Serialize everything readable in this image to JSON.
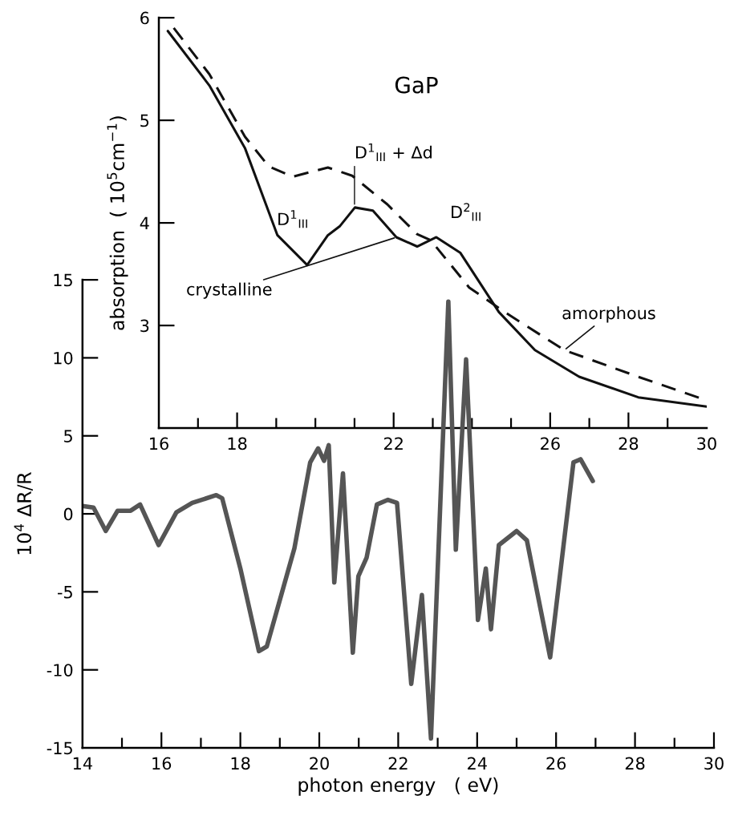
{
  "chart_data": [
    {
      "type": "line",
      "title": "GaP",
      "ylabel": "absorption  ( 10$^{5}$cm$^{−1}$)",
      "xlim": [
        16,
        30
      ],
      "ylim": [
        2,
        6
      ],
      "xticks": [
        16,
        {
          "value": 17,
          "label": null
        },
        18,
        {
          "value": 19,
          "label": null
        },
        {
          "value": 20,
          "label": null
        },
        {
          "value": 21,
          "label": null
        },
        22,
        {
          "value": 23,
          "label": null
        },
        {
          "value": 24,
          "label": null
        },
        {
          "value": 25,
          "label": null
        },
        26,
        {
          "value": 27,
          "label": null
        },
        28,
        {
          "value": 29,
          "label": null
        },
        30
      ],
      "yticks": [
        3,
        4,
        5,
        6
      ],
      "grid": false,
      "legend": false,
      "marker": "none",
      "series": [
        {
          "name": "crystalline",
          "color": "#111111",
          "line_style": "solid",
          "x": [
            16.23,
            17.29,
            18.2,
            19.03,
            19.79,
            20.32,
            20.63,
            21.01,
            21.47,
            22.07,
            22.6,
            23.09,
            23.7,
            24.69,
            25.61,
            26.74,
            28.25,
            30.0
          ],
          "values": [
            5.87,
            5.34,
            4.73,
            3.88,
            3.59,
            3.88,
            3.97,
            4.15,
            4.12,
            3.86,
            3.77,
            3.86,
            3.71,
            3.13,
            2.76,
            2.5,
            2.3,
            2.21
          ]
        },
        {
          "name": "amorphous",
          "color": "#111111",
          "line_style": "dashed",
          "x": [
            16.38,
            17.29,
            18.2,
            18.81,
            19.42,
            20.32,
            20.94,
            21.84,
            22.6,
            22.95,
            23.93,
            24.84,
            26.36,
            28.25,
            30.0
          ],
          "values": [
            5.9,
            5.45,
            4.84,
            4.55,
            4.45,
            4.54,
            4.46,
            4.18,
            3.89,
            3.83,
            3.37,
            3.13,
            2.76,
            2.5,
            2.27
          ]
        }
      ],
      "annotations": [
        {
          "text": "D$^{1}$$_{III}$",
          "x": 20.4,
          "y": 3.9
        },
        {
          "text": "D$^{1}$$_{III}$ + Δd",
          "x": 21.0,
          "y": 4.16
        },
        {
          "text": "D$^{2}$$_{III}$",
          "x": 23.1,
          "y": 3.86
        }
      ]
    },
    {
      "type": "line",
      "xlabel": "photon energy   ( eV)",
      "ylabel": "10$^{4}$ ΔR/R",
      "xlim": [
        14,
        30
      ],
      "ylim": [
        -15,
        15
      ],
      "xticks": [
        14,
        {
          "value": 15,
          "label": null
        },
        16,
        {
          "value": 17,
          "label": null
        },
        18,
        {
          "value": 19,
          "label": null
        },
        20,
        {
          "value": 21,
          "label": null
        },
        22,
        {
          "value": 23,
          "label": null
        },
        24,
        {
          "value": 25,
          "label": null
        },
        26,
        {
          "value": 27,
          "label": null
        },
        28,
        {
          "value": 29,
          "label": null
        },
        30
      ],
      "yticks": [
        -15,
        -10,
        -5,
        0,
        5,
        10,
        15
      ],
      "grid": false,
      "legend": false,
      "marker": "none",
      "series": [
        {
          "color": "#555555",
          "line_style": "solid",
          "x": [
            14.0,
            14.28,
            14.59,
            14.89,
            15.22,
            15.46,
            15.93,
            16.38,
            16.78,
            17.39,
            17.54,
            18.0,
            18.47,
            18.67,
            19.37,
            19.77,
            19.97,
            20.12,
            20.24,
            20.38,
            20.6,
            20.85,
            20.99,
            21.2,
            21.46,
            21.74,
            21.97,
            22.33,
            22.6,
            22.83,
            23.27,
            23.46,
            23.72,
            24.02,
            24.22,
            24.35,
            24.55,
            25.0,
            25.26,
            25.85,
            26.44,
            26.62,
            26.93
          ],
          "values": [
            0.5,
            0.4,
            -1.1,
            0.2,
            0.2,
            0.6,
            -2.0,
            0.1,
            0.7,
            1.2,
            1.0,
            -3.5,
            -8.8,
            -8.5,
            -2.2,
            3.3,
            4.2,
            3.4,
            4.4,
            -4.4,
            2.6,
            -8.9,
            -4.0,
            -2.8,
            0.6,
            0.9,
            0.7,
            -10.9,
            -5.2,
            -14.4,
            13.6,
            -2.3,
            9.9,
            -6.8,
            -3.5,
            -7.4,
            -2.0,
            -1.1,
            -1.7,
            -9.2,
            3.3,
            3.5,
            2.1
          ]
        }
      ]
    }
  ]
}
